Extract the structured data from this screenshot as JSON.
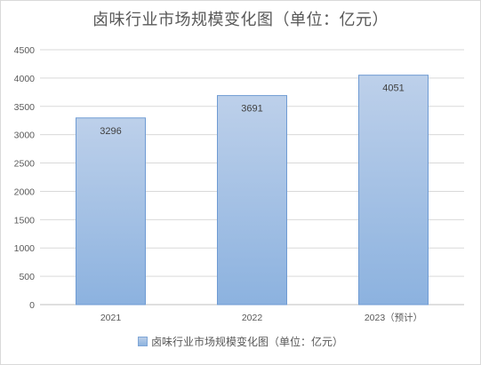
{
  "chart_data": {
    "type": "bar",
    "title": "卤味行业市场规模变化图（单位：亿元）",
    "categories": [
      "2021",
      "2022",
      "2023（预计）"
    ],
    "series": [
      {
        "name": "卤味行业市场规模变化图（单位：亿元）",
        "values": [
          3296,
          3691,
          4051
        ]
      }
    ],
    "ylim": [
      0,
      4500
    ],
    "yticks": [
      0,
      500,
      1000,
      1500,
      2000,
      2500,
      3000,
      3500,
      4000,
      4500
    ],
    "grid": true,
    "legend": "bottom",
    "bar_color_top": "#bdd0ea",
    "bar_color_bottom": "#8cb2df",
    "bar_border": "#6f9bd3",
    "grid_color": "#d9d9d9"
  }
}
